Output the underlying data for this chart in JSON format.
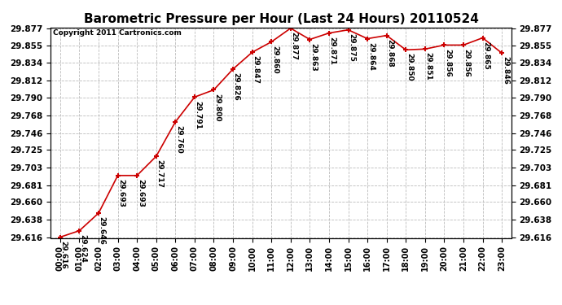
{
  "title": "Barometric Pressure per Hour (Last 24 Hours) 20110524",
  "copyright": "Copyright 2011 Cartronics.com",
  "hours": [
    "00:00",
    "01:00",
    "02:00",
    "03:00",
    "04:00",
    "05:00",
    "06:00",
    "07:00",
    "08:00",
    "09:00",
    "10:00",
    "11:00",
    "12:00",
    "13:00",
    "14:00",
    "15:00",
    "16:00",
    "17:00",
    "18:00",
    "19:00",
    "20:00",
    "21:00",
    "22:00",
    "23:00"
  ],
  "values": [
    29.616,
    29.624,
    29.646,
    29.693,
    29.693,
    29.717,
    29.76,
    29.791,
    29.8,
    29.826,
    29.847,
    29.86,
    29.877,
    29.863,
    29.871,
    29.875,
    29.864,
    29.868,
    29.85,
    29.851,
    29.856,
    29.856,
    29.865,
    29.846
  ],
  "yticks": [
    29.616,
    29.638,
    29.66,
    29.681,
    29.703,
    29.725,
    29.746,
    29.768,
    29.79,
    29.812,
    29.834,
    29.855,
    29.877
  ],
  "line_color": "#cc0000",
  "marker_color": "#cc0000",
  "bg_color": "#ffffff",
  "grid_color": "#bbbbbb",
  "title_fontsize": 11,
  "label_fontsize": 6.5,
  "tick_fontsize": 7,
  "ytick_fontsize": 7.5,
  "annot_fontsize": 6.5
}
